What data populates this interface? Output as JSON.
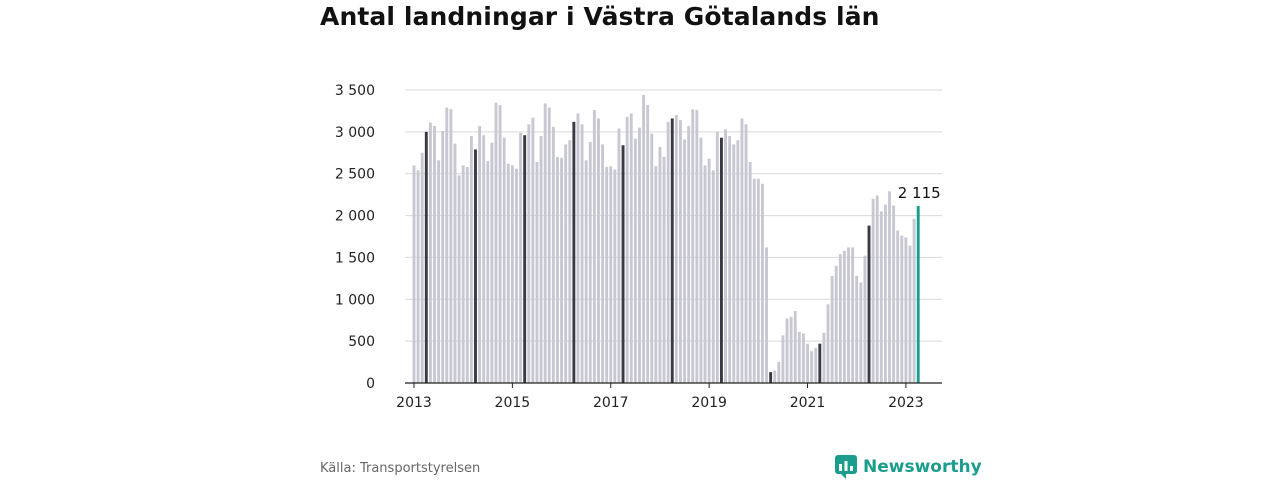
{
  "chart_data": {
    "type": "bar",
    "title": "Antal landningar i Västra Götalands län",
    "xlabel": "",
    "ylabel": "",
    "ylim": [
      0,
      3500
    ],
    "yticks": [
      0,
      500,
      1000,
      1500,
      2000,
      2500,
      3000,
      3500
    ],
    "ytick_labels": [
      "0",
      "500",
      "1 000",
      "1 500",
      "2 000",
      "2 500",
      "3 000",
      "3 500"
    ],
    "x_tick_labels": [
      "2013",
      "2015",
      "2017",
      "2019",
      "2021",
      "2023"
    ],
    "start": "2013-01",
    "end": "2023-03",
    "grid": true,
    "highlight_month": "March (dark bars)",
    "latest_label": "2 115",
    "colors": {
      "regular": "#c8c8d2",
      "march": "#3a3a44",
      "latest": "#1a9d8c",
      "grid": "#d9d9d9",
      "axis": "#222222"
    },
    "series": [
      {
        "values": [
          2600,
          2540,
          2750,
          3000,
          3110,
          3070,
          2660,
          3010,
          3290,
          3270,
          2860,
          2480,
          2600,
          2580,
          2950,
          2790,
          3070,
          2960,
          2650,
          2870,
          3350,
          3320,
          2930,
          2620,
          2600,
          2560,
          2990,
          2960,
          3090,
          3170,
          2640,
          2950,
          3340,
          3290,
          3060,
          2700,
          2690,
          2850,
          2900,
          3120,
          3220,
          3090,
          2660,
          2880,
          3260,
          3160,
          2850,
          2580,
          2590,
          2550,
          3040,
          2840,
          3180,
          3220,
          2920,
          3050,
          3440,
          3320,
          2980,
          2590,
          2820,
          2700,
          3120,
          3160,
          3200,
          3140,
          2910,
          3070,
          3270,
          3260,
          2930,
          2600,
          2680,
          2540,
          3000,
          2930,
          3030,
          2950,
          2850,
          2900,
          3160,
          3090,
          2640,
          2440,
          2440,
          2380,
          1620,
          130,
          150,
          250,
          570,
          770,
          790,
          860,
          610,
          590,
          470,
          380,
          420,
          470,
          600,
          940,
          1280,
          1400,
          1540,
          1580,
          1620,
          1620,
          1280,
          1200,
          1520,
          1880,
          2200,
          2240,
          2050,
          2130,
          2290,
          2120,
          1820,
          1760,
          1740,
          1640,
          1960,
          2115
        ]
      }
    ]
  },
  "footer": {
    "source": "Källa: Transportstyrelsen",
    "brand": "Newsworthy",
    "brand_icon": "bar-chart-logo-icon"
  }
}
